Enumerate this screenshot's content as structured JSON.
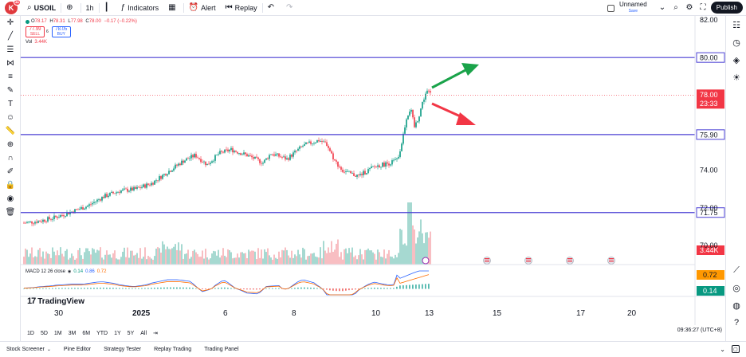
{
  "header": {
    "avatar_letter": "K",
    "avatar_badge": "11",
    "symbol": "USOIL",
    "interval": "1h",
    "indicators_label": "Indicators",
    "alert_label": "Alert",
    "replay_label": "Replay",
    "layout_name": "Unnamed",
    "layout_state": "Save",
    "publish_label": "Publish"
  },
  "legend": {
    "ohlc": [
      {
        "key": "O",
        "value": "78.17"
      },
      {
        "key": "H",
        "value": "78.31"
      },
      {
        "key": "L",
        "value": "77.98"
      },
      {
        "key": "C",
        "value": "78.00"
      }
    ],
    "change": "−0.17 (−0.22%)",
    "sell_price": "77.99",
    "sell_label": "SELL",
    "spread": "6",
    "buy_price": "78.05",
    "buy_label": "BUY",
    "vol_label": "Vol",
    "vol_value": "3.44K",
    "macd_label": "MACD 12 26 close",
    "macd_value": "0.14",
    "signal_value": "0.86",
    "hist_value": "0.72"
  },
  "price_axis": {
    "ticks": [
      "82.00",
      "74.00",
      "72.00",
      "70.00"
    ],
    "current_price": "78.00",
    "countdown": "23:33",
    "level_lines": [
      "80.00",
      "75.90",
      "71.75"
    ],
    "volume_label": "3.44K",
    "macd_signal_label": "0.72",
    "macd_hist_label": "0.14"
  },
  "time_axis": {
    "labels": [
      "30",
      "2025",
      "6",
      "8",
      "10",
      "13",
      "15",
      "17",
      "20"
    ]
  },
  "timeframes": [
    "1D",
    "5D",
    "1M",
    "3M",
    "6M",
    "YTD",
    "1Y",
    "5Y",
    "All"
  ],
  "clock": "09:36:27 (UTC+8)",
  "bottom_panel": {
    "items": [
      "Stock Screener",
      "Pine Editor",
      "Strategy Tester",
      "Replay Trading",
      "Trading Panel"
    ]
  },
  "branding": "TradingView",
  "colors": {
    "up": "#089981",
    "down": "#f23645",
    "level_line": "#4a3fd4",
    "arrow_up": "#1aa34a",
    "arrow_down": "#f23645",
    "macd_line": "#2962ff",
    "signal_line": "#ff6d00"
  }
}
